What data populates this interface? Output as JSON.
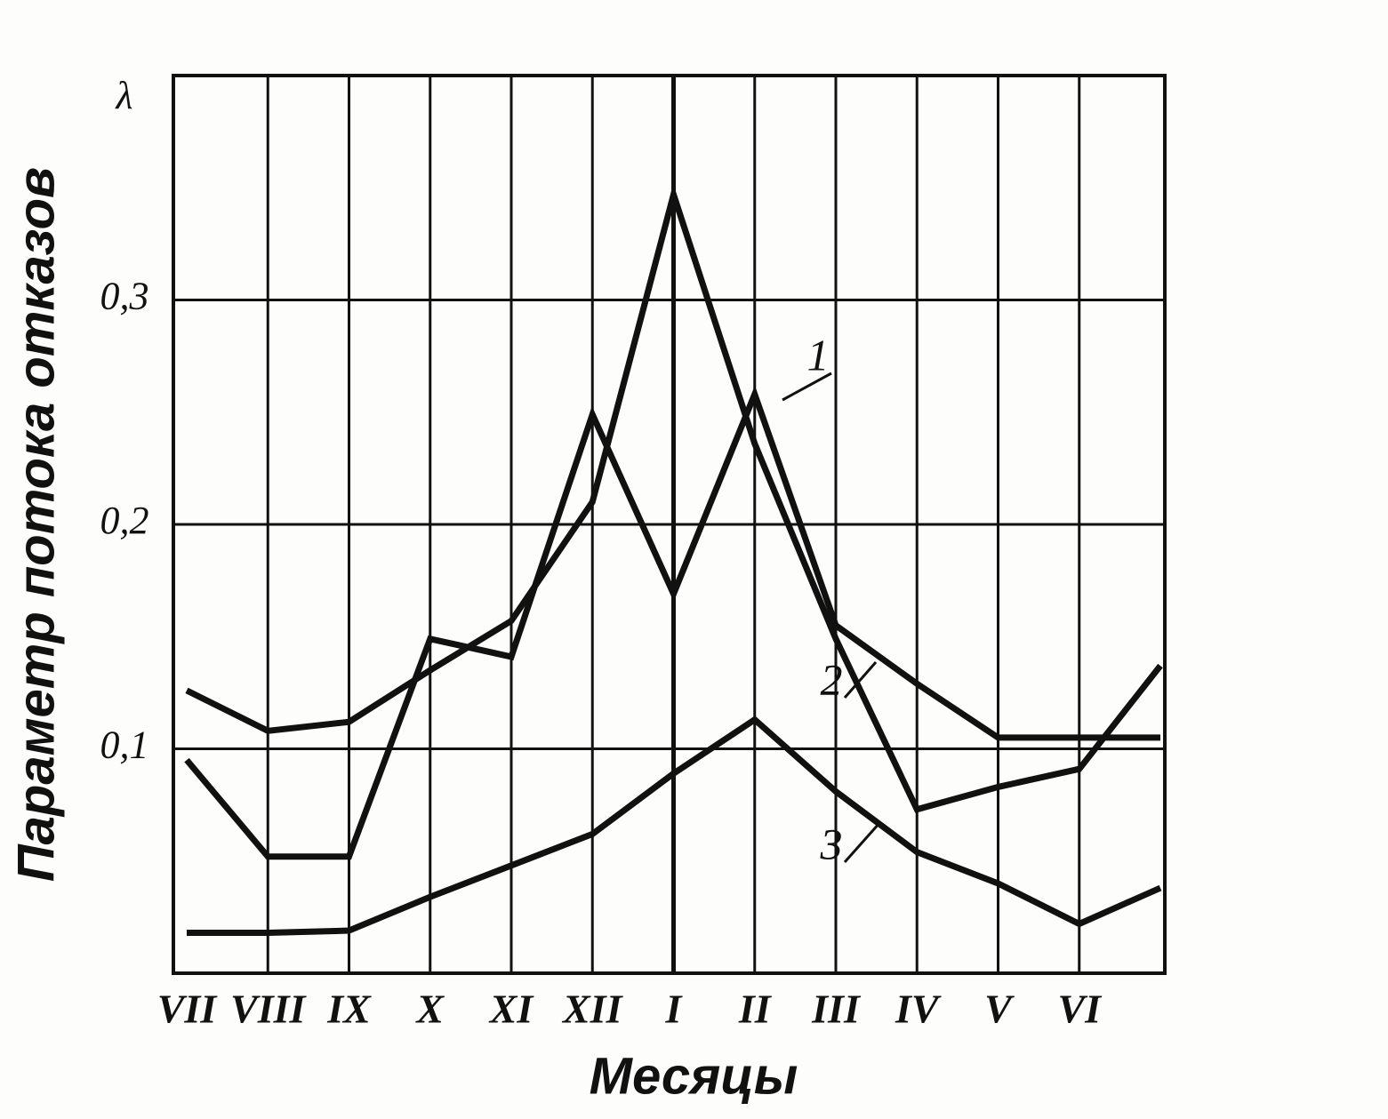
{
  "chart_data": {
    "type": "line",
    "y_symbol": "λ",
    "y_label": "Параметр потока  отказов",
    "x_label": "Месяцы",
    "categories": [
      "VII",
      "VIII",
      "IX",
      "X",
      "XI",
      "XII",
      "I",
      "II",
      "III",
      "IV",
      "V",
      "VI",
      null
    ],
    "series": [
      {
        "name": "1",
        "color": "#111111",
        "values": [
          0.095,
          0.052,
          0.052,
          0.149,
          0.141,
          0.249,
          0.169,
          0.258,
          0.155,
          0.129,
          0.105,
          0.105,
          0.105
        ]
      },
      {
        "name": "2",
        "color": "#111111",
        "values": [
          0.126,
          0.108,
          0.112,
          0.135,
          0.157,
          0.21,
          0.347,
          0.236,
          0.149,
          0.073,
          0.083,
          0.091,
          0.137
        ]
      },
      {
        "name": "3",
        "color": "#111111",
        "values": [
          0.018,
          0.018,
          0.019,
          0.034,
          0.048,
          0.062,
          0.089,
          0.113,
          0.081,
          0.054,
          0.04,
          0.022,
          0.038
        ]
      }
    ],
    "ylim": [
      0,
      0.4
    ],
    "yticks": [
      {
        "value": 0.1,
        "label": "0,1"
      },
      {
        "value": 0.2,
        "label": "0,2"
      },
      {
        "value": 0.3,
        "label": "0,3"
      }
    ],
    "grid": true
  }
}
